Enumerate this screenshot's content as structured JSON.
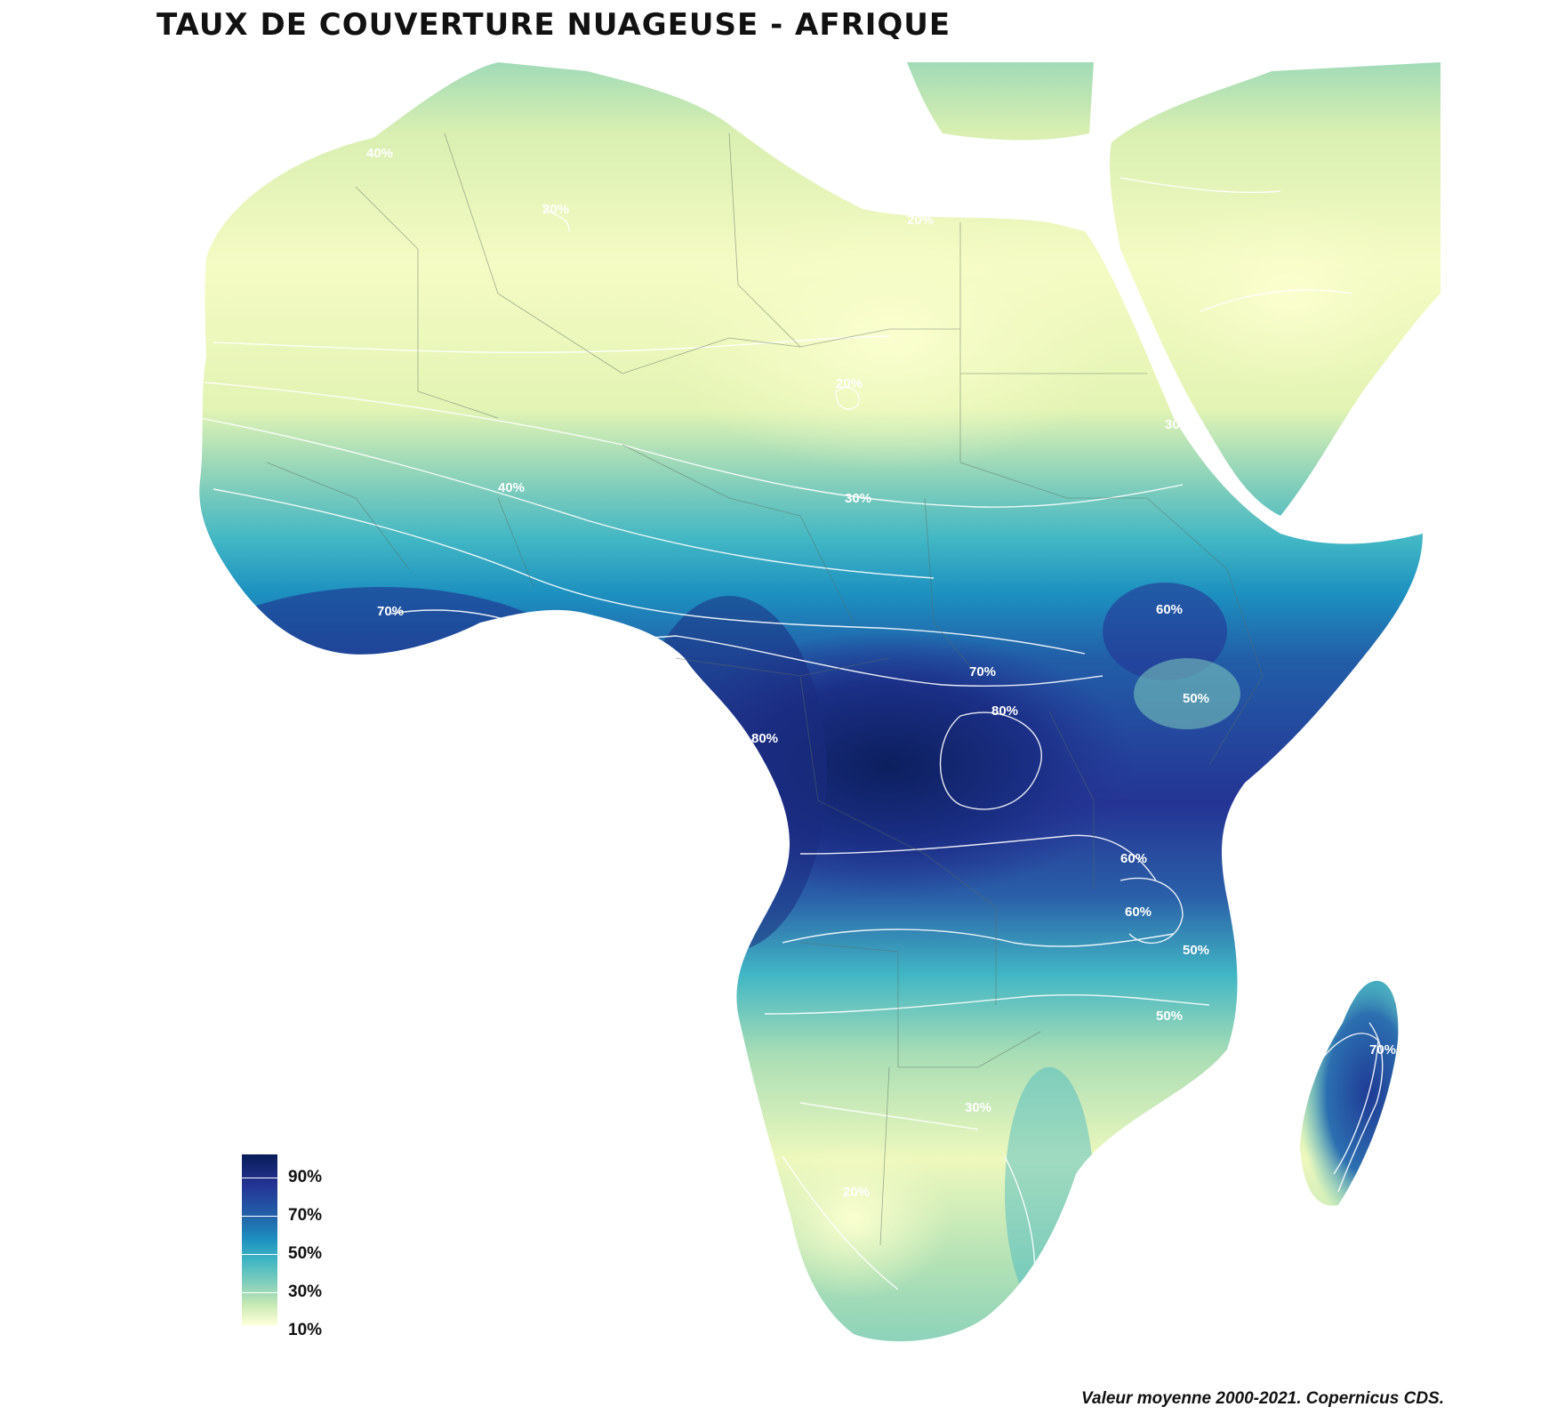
{
  "title": "TAUX DE COUVERTURE NUAGEUSE - AFRIQUE",
  "caption": "Valeur moyenne 2000-2021. Copernicus CDS.",
  "legend": {
    "ticks": [
      "90%",
      "70%",
      "50%",
      "30%",
      "10%"
    ],
    "colors": [
      "#ffffd9",
      "#c7e9b4",
      "#7fcdbb",
      "#41b6c4",
      "#1d91c0",
      "#225ea8",
      "#253494",
      "#081d58"
    ]
  },
  "contour_labels": [
    "20%",
    "20%",
    "20%",
    "20%",
    "30%",
    "30%",
    "30%",
    "40%",
    "40%",
    "40%",
    "50%",
    "50%",
    "50%",
    "60%",
    "60%",
    "60%",
    "70%",
    "70%",
    "70%",
    "80%",
    "80%"
  ]
}
